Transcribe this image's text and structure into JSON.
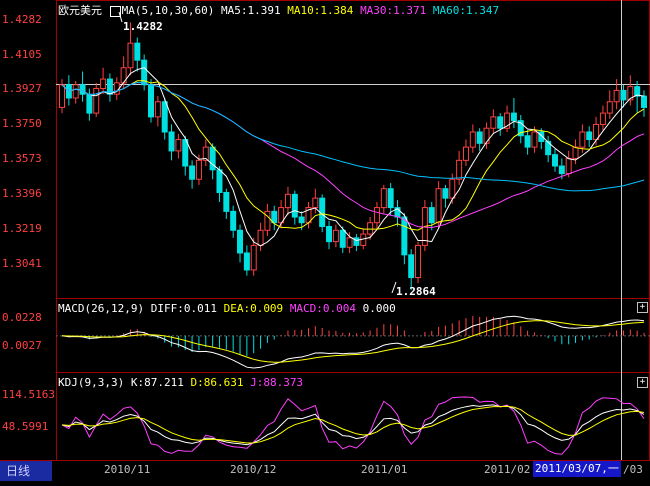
{
  "main_header": {
    "symbol": "欧元美元",
    "ma_param": "MA(5,10,30,60)",
    "ma5": "MA5:1.391",
    "ma10": "MA10:1.384",
    "ma30": "MA30:1.371",
    "ma60": "MA60:1.347"
  },
  "macd_header": {
    "param": "MACD(26,12,9)",
    "diff": "DIFF:0.011",
    "dea": "DEA:0.009",
    "macd": "MACD:0.004",
    "extra": "0.000"
  },
  "kdj_header": {
    "param": "KDJ(9,3,3)",
    "k": "K:87.211",
    "d": "D:86.631",
    "j": "J:88.373"
  },
  "price_axis": [
    "1.4282",
    "1.4105",
    "1.3927",
    "1.3750",
    "1.3573",
    "1.3396",
    "1.3219",
    "1.3041"
  ],
  "macd_axis": [
    "0.0228",
    "0.0027"
  ],
  "kdj_axis": [
    "114.5163",
    "48.5991"
  ],
  "annotations": {
    "high": "1.4282",
    "low": "1.2864"
  },
  "x_axis": [
    "2010/11",
    "2010/12",
    "2011/01",
    "2011/02",
    "/03"
  ],
  "cursor_date": "2011/03/07,一",
  "period_tab": "日线",
  "colors": {
    "up": "#ff4040",
    "down": "#00e0e0",
    "ma5": "#ffffff",
    "ma10": "#ffff00",
    "ma30": "#ff40ff",
    "ma60": "#00c0ff",
    "dea": "#ffff00",
    "j": "#ff40ff"
  },
  "chart_data": {
    "type": "candlestick",
    "price_range": [
      1.2864,
      1.4282
    ],
    "candles": [
      [
        1.383,
        1.395,
        1.398,
        1.38
      ],
      [
        1.395,
        1.388,
        1.4,
        1.384
      ],
      [
        1.388,
        1.395,
        1.397,
        1.385
      ],
      [
        1.395,
        1.39,
        1.402,
        1.386
      ],
      [
        1.39,
        1.38,
        1.393,
        1.376
      ],
      [
        1.38,
        1.393,
        1.396,
        1.378
      ],
      [
        1.393,
        1.398,
        1.404,
        1.39
      ],
      [
        1.398,
        1.39,
        1.401,
        1.386
      ],
      [
        1.39,
        1.396,
        1.399,
        1.387
      ],
      [
        1.396,
        1.404,
        1.41,
        1.393
      ],
      [
        1.404,
        1.417,
        1.428,
        1.4
      ],
      [
        1.417,
        1.408,
        1.42,
        1.402
      ],
      [
        1.408,
        1.395,
        1.411,
        1.392
      ],
      [
        1.395,
        1.378,
        1.398,
        1.375
      ],
      [
        1.378,
        1.386,
        1.389,
        1.373
      ],
      [
        1.386,
        1.37,
        1.388,
        1.366
      ],
      [
        1.37,
        1.36,
        1.374,
        1.355
      ],
      [
        1.36,
        1.366,
        1.369,
        1.356
      ],
      [
        1.366,
        1.352,
        1.368,
        1.347
      ],
      [
        1.352,
        1.345,
        1.355,
        1.34
      ],
      [
        1.345,
        1.355,
        1.358,
        1.342
      ],
      [
        1.355,
        1.362,
        1.366,
        1.352
      ],
      [
        1.362,
        1.35,
        1.364,
        1.345
      ],
      [
        1.35,
        1.338,
        1.352,
        1.333
      ],
      [
        1.338,
        1.328,
        1.34,
        1.324
      ],
      [
        1.328,
        1.318,
        1.331,
        1.314
      ],
      [
        1.318,
        1.306,
        1.321,
        1.301
      ],
      [
        1.306,
        1.297,
        1.31,
        1.294
      ],
      [
        1.297,
        1.31,
        1.314,
        1.294
      ],
      [
        1.31,
        1.318,
        1.322,
        1.307
      ],
      [
        1.318,
        1.328,
        1.332,
        1.315
      ],
      [
        1.328,
        1.322,
        1.331,
        1.318
      ],
      [
        1.322,
        1.33,
        1.334,
        1.319
      ],
      [
        1.33,
        1.337,
        1.341,
        1.326
      ],
      [
        1.337,
        1.325,
        1.339,
        1.321
      ],
      [
        1.325,
        1.322,
        1.328,
        1.318
      ],
      [
        1.322,
        1.33,
        1.333,
        1.319
      ],
      [
        1.33,
        1.335,
        1.34,
        1.327
      ],
      [
        1.335,
        1.32,
        1.337,
        1.317
      ],
      [
        1.32,
        1.312,
        1.323,
        1.308
      ],
      [
        1.312,
        1.318,
        1.321,
        1.309
      ],
      [
        1.318,
        1.309,
        1.32,
        1.306
      ],
      [
        1.309,
        1.314,
        1.317,
        1.306
      ],
      [
        1.314,
        1.31,
        1.316,
        1.307
      ],
      [
        1.31,
        1.316,
        1.319,
        1.308
      ],
      [
        1.316,
        1.322,
        1.325,
        1.313
      ],
      [
        1.322,
        1.33,
        1.333,
        1.319
      ],
      [
        1.33,
        1.34,
        1.342,
        1.327
      ],
      [
        1.34,
        1.33,
        1.343,
        1.326
      ],
      [
        1.33,
        1.325,
        1.334,
        1.32
      ],
      [
        1.325,
        1.305,
        1.327,
        1.3
      ],
      [
        1.305,
        1.293,
        1.308,
        1.2864
      ],
      [
        1.293,
        1.31,
        1.312,
        1.29
      ],
      [
        1.31,
        1.33,
        1.334,
        1.307
      ],
      [
        1.33,
        1.322,
        1.333,
        1.318
      ],
      [
        1.322,
        1.34,
        1.344,
        1.319
      ],
      [
        1.34,
        1.335,
        1.342,
        1.33
      ],
      [
        1.335,
        1.345,
        1.348,
        1.332
      ],
      [
        1.345,
        1.355,
        1.36,
        1.342
      ],
      [
        1.355,
        1.362,
        1.366,
        1.352
      ],
      [
        1.362,
        1.37,
        1.374,
        1.359
      ],
      [
        1.37,
        1.364,
        1.372,
        1.36
      ],
      [
        1.364,
        1.372,
        1.375,
        1.361
      ],
      [
        1.372,
        1.378,
        1.382,
        1.369
      ],
      [
        1.378,
        1.372,
        1.38,
        1.368
      ],
      [
        1.372,
        1.38,
        1.384,
        1.37
      ],
      [
        1.38,
        1.376,
        1.388,
        1.372
      ],
      [
        1.376,
        1.368,
        1.379,
        1.364
      ],
      [
        1.368,
        1.362,
        1.371,
        1.358
      ],
      [
        1.362,
        1.37,
        1.373,
        1.359
      ],
      [
        1.37,
        1.365,
        1.372,
        1.361
      ],
      [
        1.365,
        1.358,
        1.368,
        1.354
      ],
      [
        1.358,
        1.352,
        1.361,
        1.349
      ],
      [
        1.352,
        1.348,
        1.356,
        1.345
      ],
      [
        1.348,
        1.356,
        1.36,
        1.346
      ],
      [
        1.356,
        1.362,
        1.366,
        1.353
      ],
      [
        1.362,
        1.37,
        1.374,
        1.359
      ],
      [
        1.37,
        1.366,
        1.373,
        1.362
      ],
      [
        1.366,
        1.374,
        1.378,
        1.363
      ],
      [
        1.374,
        1.38,
        1.384,
        1.371
      ],
      [
        1.38,
        1.386,
        1.392,
        1.377
      ],
      [
        1.386,
        1.392,
        1.398,
        1.382
      ],
      [
        1.392,
        1.387,
        1.395,
        1.383
      ],
      [
        1.387,
        1.394,
        1.4,
        1.384
      ],
      [
        1.394,
        1.389,
        1.397,
        1.38
      ],
      [
        1.389,
        1.383,
        1.392,
        1.378
      ]
    ]
  }
}
